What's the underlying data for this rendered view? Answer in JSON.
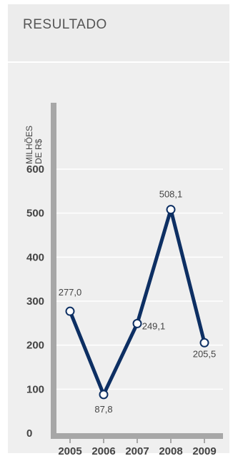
{
  "header": {
    "title": "RESULTADO"
  },
  "colors": {
    "panel": "#efefef",
    "line": "#0d2f63",
    "axis": "#a7a7a7",
    "grid": "#ffffff",
    "text": "#444444"
  },
  "chart_data": {
    "type": "line",
    "title": "RESULTADO",
    "ylabel_lines": [
      "MILHÕES",
      "DE R$"
    ],
    "categories": [
      "2005",
      "2006",
      "2007",
      "2008",
      "2009"
    ],
    "series": [
      {
        "values": [
          277.0,
          87.8,
          249.1,
          508.1,
          205.5
        ]
      }
    ],
    "data_labels": [
      "277,0",
      "87,8",
      "249,1",
      "508,1",
      "205,5"
    ],
    "yticks": [
      0,
      100,
      200,
      300,
      400,
      500,
      600
    ],
    "ylim": [
      0,
      600
    ],
    "grid": true
  }
}
